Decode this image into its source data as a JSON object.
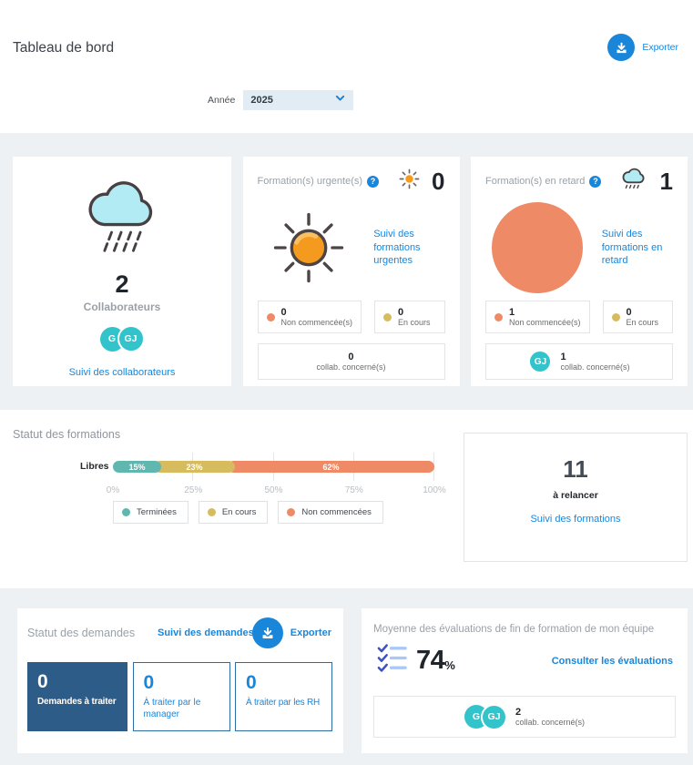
{
  "colors": {
    "accent_blue": "#1a86d9",
    "navy": "#2e5c88",
    "teal": "#5fb7b0",
    "yellow": "#d6bc5e",
    "orange": "#ef8a67",
    "avatar_teal": "#33c3cb"
  },
  "icons": {
    "help_glyph": "?"
  },
  "header": {
    "title": "Tableau de bord",
    "export_label": "Exporter"
  },
  "filter": {
    "label": "Année",
    "value": "2025"
  },
  "collaborators_card": {
    "count": "2",
    "label": "Collaborateurs",
    "avatars": [
      "G",
      "GJ"
    ],
    "link": "Suivi des collaborateurs"
  },
  "urgent_card": {
    "title": "Formation(s) urgente(s)",
    "count": "0",
    "link": "Suivi des formations urgentes",
    "stats": {
      "not_started": {
        "value": "0",
        "label": "Non commencée(s)"
      },
      "in_progress": {
        "value": "0",
        "label": "En cours"
      },
      "collab": {
        "value": "0",
        "label": "collab. concerné(s)"
      }
    }
  },
  "late_card": {
    "title": "Formation(s) en retard",
    "count": "1",
    "link": "Suivi des formations en retard",
    "stats": {
      "not_started": {
        "value": "1",
        "label": "Non commencée(s)"
      },
      "in_progress": {
        "value": "0",
        "label": "En cours"
      },
      "collab": {
        "value": "1",
        "label": "collab. concerné(s)",
        "avatar": "GJ"
      }
    }
  },
  "formations_section": {
    "title": "Statut des formations",
    "chart_data": {
      "type": "bar",
      "stacked": true,
      "orientation": "horizontal",
      "categories": [
        "Libres"
      ],
      "series": [
        {
          "name": "Terminées",
          "values": [
            15
          ],
          "color": "#5fb7b0"
        },
        {
          "name": "En cours",
          "values": [
            23
          ],
          "color": "#d6bc5e"
        },
        {
          "name": "Non commencées",
          "values": [
            62
          ],
          "color": "#ef8a67"
        }
      ],
      "labels": [
        "15%",
        "23%",
        "62%"
      ],
      "x_ticks": [
        "0%",
        "25%",
        "50%",
        "75%",
        "100%"
      ],
      "xlim": [
        0,
        100
      ],
      "grid": true,
      "legend_position": "bottom"
    },
    "relaunch_card": {
      "count": "11",
      "label": "à relancer",
      "link": "Suivi des formations"
    }
  },
  "requests_section": {
    "title": "Statut des demandes",
    "link": "Suivi des demandes",
    "export_label": "Exporter",
    "boxes": [
      {
        "value": "0",
        "label": "Demandes à traiter"
      },
      {
        "value": "0",
        "label": "À traiter par le manager"
      },
      {
        "value": "0",
        "label": "À traiter par les RH"
      }
    ]
  },
  "evaluations_section": {
    "title": "Moyenne des évaluations de fin de formation de mon équipe",
    "value": "74",
    "unit": "%",
    "link": "Consulter les évaluations",
    "collab": {
      "value": "2",
      "label": "collab. concerné(s)",
      "avatars": [
        "G",
        "GJ"
      ]
    }
  }
}
